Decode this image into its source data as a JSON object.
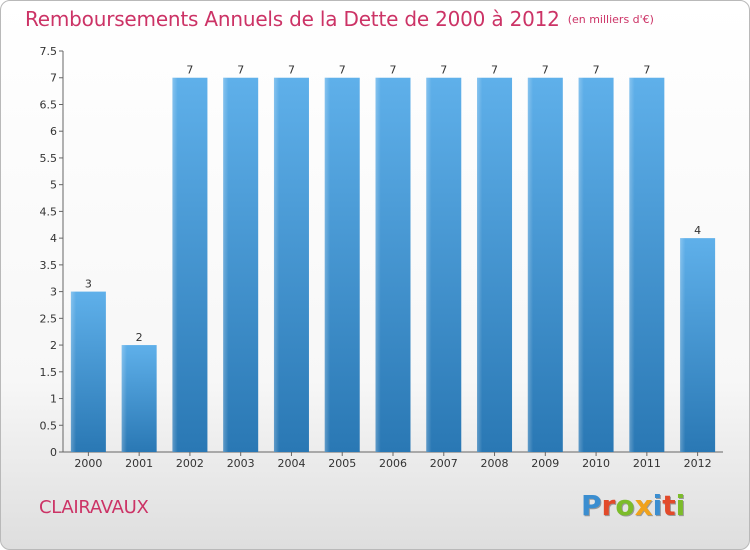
{
  "header": {
    "title": "Remboursements Annuels de la Dette de 2000 à 2012",
    "unit": "(en milliers d'€)"
  },
  "footer": {
    "commune": "CLAIRAVAUX",
    "logo": "Proxiti"
  },
  "colors": {
    "title": "#cc3366",
    "bar_light": "#5fb0ea",
    "bar_dark": "#2a78b4",
    "logo_letters": [
      "#3b8ed0",
      "#e24a2a",
      "#7cbc2a",
      "#f0a21c",
      "#3b8ed0",
      "#e24a2a",
      "#7cbc2a"
    ]
  },
  "chart_data": {
    "type": "bar",
    "title": "Remboursements Annuels de la Dette de 2000 à 2012",
    "subtitle": "(en milliers d'€)",
    "xlabel": "",
    "ylabel": "",
    "categories": [
      "2000",
      "2001",
      "2002",
      "2003",
      "2004",
      "2005",
      "2006",
      "2007",
      "2008",
      "2009",
      "2010",
      "2011",
      "2012"
    ],
    "values": [
      3,
      2,
      7,
      7,
      7,
      7,
      7,
      7,
      7,
      7,
      7,
      7,
      4
    ],
    "data_labels": [
      "3",
      "2",
      "7",
      "7",
      "7",
      "7",
      "7",
      "7",
      "7",
      "7",
      "7",
      "7",
      "4"
    ],
    "ylim": [
      0,
      7.5
    ],
    "yticks": [
      0,
      0.5,
      1,
      1.5,
      2,
      2.5,
      3,
      3.5,
      4,
      4.5,
      5,
      5.5,
      6,
      6.5,
      7,
      7.5
    ],
    "ytick_labels": [
      "0",
      "0.5",
      "1",
      "1.5",
      "2",
      "2.5",
      "3",
      "3.5",
      "4",
      "4.5",
      "5",
      "5.5",
      "6",
      "6.5",
      "7",
      "7.5"
    ],
    "grid": false,
    "legend": "none"
  }
}
